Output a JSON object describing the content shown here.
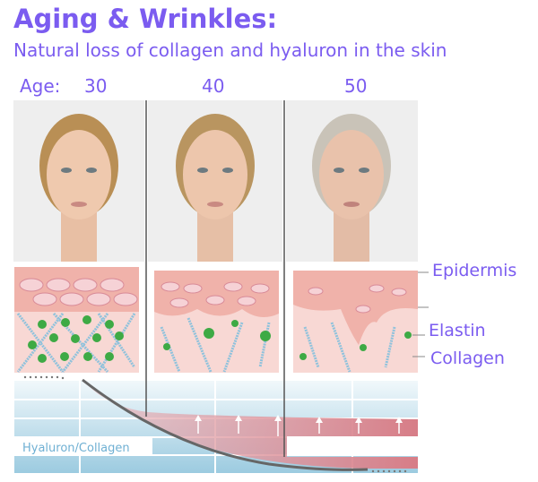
{
  "title": "Aging & Wrinkles:",
  "subtitle": "Natural loss of collagen and hyaluron in the skin",
  "ages": {
    "label": "Age:",
    "values": [
      "30",
      "40",
      "50"
    ]
  },
  "layers": {
    "epidermis": "Epidermis",
    "elastin": "Elastin",
    "collagen": "Collagen"
  },
  "chart": {
    "label": "Hyaluron/Collagen"
  },
  "colors": {
    "accent": "#7b5cf0",
    "skin": "#f6cfc9",
    "curve": "#666666",
    "band": "#d9818a",
    "grid": "#a9d3e6"
  }
}
